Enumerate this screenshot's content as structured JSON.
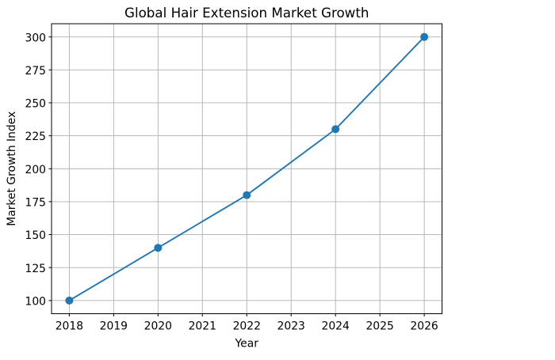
{
  "chart_data": {
    "type": "line",
    "title": "Global Hair Extension Market Growth",
    "xlabel": "Year",
    "ylabel": "Market Growth Index",
    "x": [
      2018,
      2020,
      2022,
      2024,
      2026
    ],
    "series": [
      {
        "name": "Market Growth Index",
        "values": [
          100,
          140,
          180,
          230,
          300
        ]
      }
    ],
    "xticks": [
      2018,
      2019,
      2020,
      2021,
      2022,
      2023,
      2024,
      2025,
      2026
    ],
    "yticks": [
      100,
      125,
      150,
      175,
      200,
      225,
      250,
      275,
      300
    ],
    "xlim": [
      2017.6,
      2026.4
    ],
    "ylim": [
      90,
      310
    ],
    "grid": true,
    "legend": false,
    "line_color": "#1f77b4",
    "grid_color": "#b0b0b0",
    "marker": "o"
  }
}
